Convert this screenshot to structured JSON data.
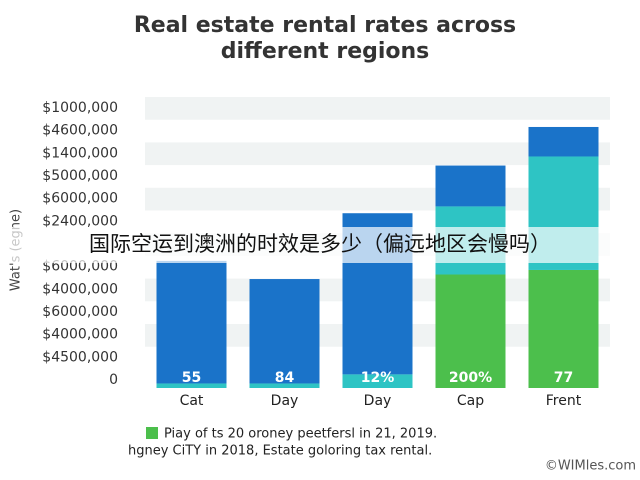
{
  "chart_data": {
    "type": "bar",
    "title_lines": [
      "Real estate rental rates across",
      "different regions"
    ],
    "y_axis_label": "Wat's (egne)",
    "y_labels": [
      "$1000,000",
      "$4600,000",
      "$1400,000",
      "$5000,000",
      "$6000,000",
      "$2400,000",
      "$6000,000",
      "$4000,000",
      "$6000,000",
      "$4000,000",
      "$4500,000",
      "0"
    ],
    "categories": [
      "Cat",
      "Day",
      "Day",
      "Cap",
      "Frent"
    ],
    "series": [
      {
        "color": "#4cbf4c",
        "values": [
          0,
          0,
          0,
          5.0,
          5.2
        ]
      },
      {
        "color": "#2ec4c4",
        "values": [
          0.2,
          0.2,
          0.6,
          3.0,
          5.0
        ]
      },
      {
        "color": "#1a73c9",
        "values": [
          5.4,
          4.6,
          7.1,
          1.8,
          1.3
        ]
      }
    ],
    "bar_labels": [
      "55",
      "84",
      "12%",
      "200%",
      "77"
    ],
    "ylim": [
      0,
      12.6
    ],
    "legend_color": "#4cbf4c",
    "legend": [
      "Piay of ts 20 oroney peetfersl in 21, 2019.",
      "hgney CiTY in 2018, Estate goloring tax rental."
    ],
    "banner": "国际空运到澳洲的时效是多少（偏远地区会慢吗）",
    "watermark": "©WIMles.com"
  }
}
